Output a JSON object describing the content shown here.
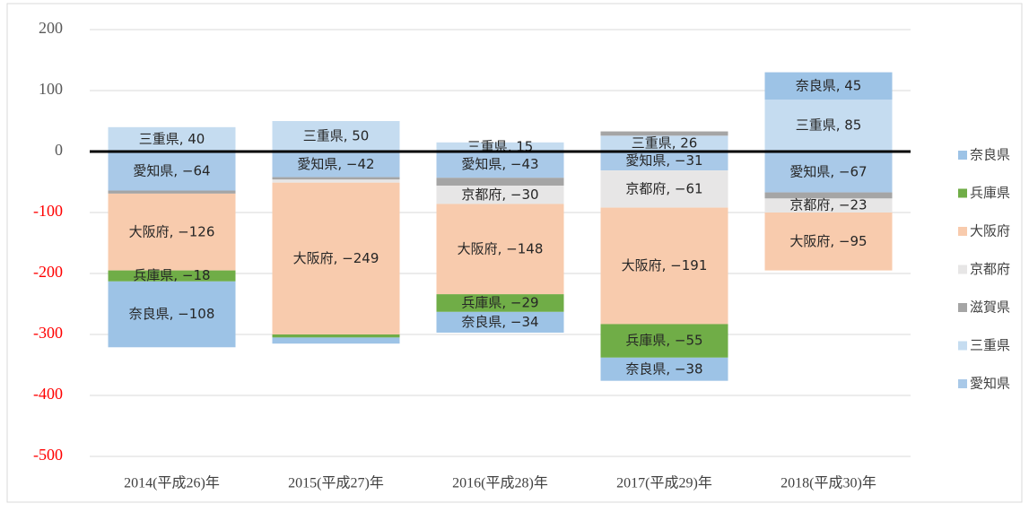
{
  "chart_data": {
    "type": "stacked_bar",
    "categories": [
      "2014(平成26)年",
      "2015(平成27)年",
      "2016(平成28)年",
      "2017(平成29)年",
      "2018(平成30)年"
    ],
    "ylim": [
      -500,
      200
    ],
    "yticks": [
      -500,
      -400,
      -300,
      -200,
      -100,
      0,
      100,
      200
    ],
    "grid": true,
    "negative_tick_color": "#ff0000",
    "legend": "right",
    "series": [
      {
        "name": "奈良県",
        "color": "#9dc3e6",
        "values": [
          -108,
          -10,
          -34,
          -38,
          45
        ],
        "value_labels": [
          "奈良県, −108",
          null,
          "奈良県, −34",
          "奈良県, −38",
          "奈良県, 45"
        ]
      },
      {
        "name": "兵庫県",
        "color": "#70ad47",
        "values": [
          -18,
          -5,
          -29,
          -55,
          null
        ],
        "value_labels": [
          "兵庫県, −18",
          null,
          "兵庫県, −29",
          "兵庫県, −55",
          null
        ]
      },
      {
        "name": "大阪府",
        "color": "#f8cbad",
        "values": [
          -126,
          -249,
          -148,
          -191,
          -95
        ],
        "value_labels": [
          "大阪府, −126",
          "大阪府, −249",
          "大阪府, −148",
          "大阪府, −191",
          "大阪府, −95"
        ]
      },
      {
        "name": "京都府",
        "color": "#e7e6e6",
        "values": [
          null,
          -5,
          -30,
          -61,
          -23
        ],
        "value_labels": [
          null,
          null,
          "京都府, −30",
          "京都府, −61",
          "京都府, −23"
        ]
      },
      {
        "name": "滋賀県",
        "color": "#a5a5a5",
        "values": [
          -5,
          -4,
          -13,
          7,
          -10
        ],
        "value_labels": [
          null,
          null,
          null,
          null,
          null
        ]
      },
      {
        "name": "三重県",
        "color": "#c5dcf0",
        "values": [
          40,
          50,
          15,
          26,
          85
        ],
        "value_labels": [
          "三重県, 40",
          "三重県, 50",
          "三重県, 15",
          "三重県, 26",
          "三重県, 85"
        ]
      },
      {
        "name": "愛知県",
        "color": "#a9c9e8",
        "values": [
          -64,
          -42,
          -43,
          -31,
          -67
        ],
        "value_labels": [
          "愛知県, −64",
          "愛知県, −42",
          "愛知県, −43",
          "愛知県, −31",
          "愛知県, −67"
        ]
      }
    ]
  }
}
